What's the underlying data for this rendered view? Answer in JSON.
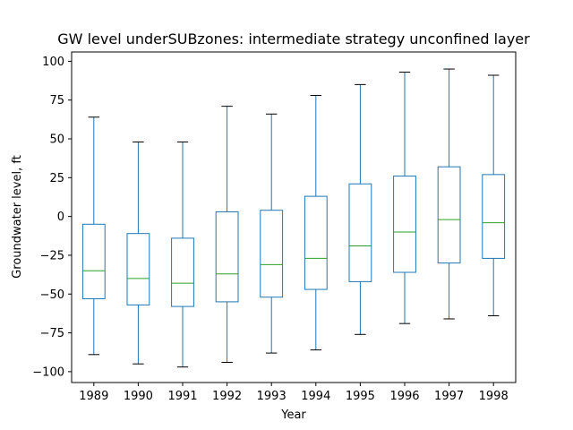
{
  "chart_data": {
    "type": "box",
    "title": "GW level underSUBzones: intermediate strategy unconfined layer",
    "xlabel": "Year",
    "ylabel": "Groundwater level, ft",
    "ylim": [
      -107,
      106
    ],
    "yticks": [
      -100,
      -75,
      -50,
      -25,
      0,
      25,
      50,
      75,
      100
    ],
    "categories": [
      "1989",
      "1990",
      "1991",
      "1992",
      "1993",
      "1994",
      "1995",
      "1996",
      "1997",
      "1998"
    ],
    "boxes": [
      {
        "whisker_low": -89,
        "q1": -53,
        "median": -35,
        "q3": -5,
        "whisker_high": 64
      },
      {
        "whisker_low": -95,
        "q1": -57,
        "median": -40,
        "q3": -11,
        "whisker_high": 48
      },
      {
        "whisker_low": -97,
        "q1": -58,
        "median": -43,
        "q3": -14,
        "whisker_high": 48
      },
      {
        "whisker_low": -94,
        "q1": -55,
        "median": -37,
        "q3": 3,
        "whisker_high": 71
      },
      {
        "whisker_low": -88,
        "q1": -52,
        "median": -31,
        "q3": 4,
        "whisker_high": 66
      },
      {
        "whisker_low": -86,
        "q1": -47,
        "median": -27,
        "q3": 13,
        "whisker_high": 78
      },
      {
        "whisker_low": -76,
        "q1": -42,
        "median": -19,
        "q3": 21,
        "whisker_high": 85
      },
      {
        "whisker_low": -69,
        "q1": -36,
        "median": -10,
        "q3": 26,
        "whisker_high": 93
      },
      {
        "whisker_low": -66,
        "q1": -30,
        "median": -2,
        "q3": 32,
        "whisker_high": 95
      },
      {
        "whisker_low": -64,
        "q1": -27,
        "median": -4,
        "q3": 27,
        "whisker_high": 91
      }
    ],
    "grid": false,
    "colors": {
      "box": "#1f77b4",
      "median": "#2ca02c",
      "axes": "#000000"
    }
  }
}
